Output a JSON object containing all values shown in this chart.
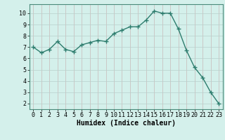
{
  "x": [
    0,
    1,
    2,
    3,
    4,
    5,
    6,
    7,
    8,
    9,
    10,
    11,
    12,
    13,
    14,
    15,
    16,
    17,
    18,
    19,
    20,
    21,
    22,
    23
  ],
  "y": [
    7.0,
    6.5,
    6.8,
    7.5,
    6.8,
    6.6,
    7.2,
    7.4,
    7.6,
    7.5,
    8.2,
    8.5,
    8.8,
    8.8,
    9.4,
    10.2,
    10.0,
    10.0,
    8.6,
    6.7,
    5.2,
    4.3,
    3.0,
    2.0
  ],
  "line_color": "#2e7d6e",
  "marker": "+",
  "marker_size": 4,
  "bg_color": "#d4f0eb",
  "grid_color_v": "#c8b8b8",
  "grid_color_h": "#b8d0cc",
  "xlabel": "Humidex (Indice chaleur)",
  "xlabel_fontsize": 7,
  "tick_fontsize": 6,
  "xlim": [
    -0.5,
    23.5
  ],
  "ylim": [
    1.5,
    10.8
  ],
  "yticks": [
    2,
    3,
    4,
    5,
    6,
    7,
    8,
    9,
    10
  ],
  "xticks": [
    0,
    1,
    2,
    3,
    4,
    5,
    6,
    7,
    8,
    9,
    10,
    11,
    12,
    13,
    14,
    15,
    16,
    17,
    18,
    19,
    20,
    21,
    22,
    23
  ],
  "line_width": 1.0
}
